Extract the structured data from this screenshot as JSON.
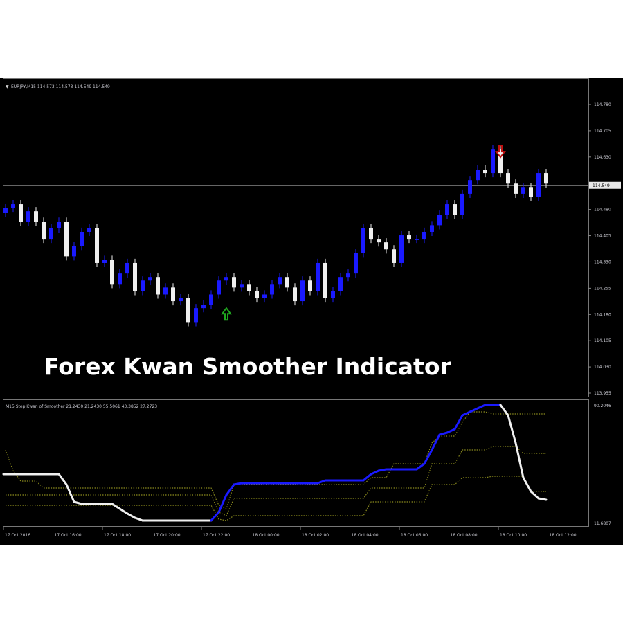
{
  "chart_data": [
    {
      "type": "candlestick",
      "symbol_header": "EURJPY,M15  114.573 114.573 114.549 114.549",
      "overlay_title": "Forex Kwan Smoother Indicator",
      "ylim": [
        113.955,
        114.78
      ],
      "y_ticks": [
        "114.780",
        "114.705",
        "114.630",
        "114.480",
        "114.405",
        "114.330",
        "114.255",
        "114.180",
        "114.105",
        "114.030",
        "113.955"
      ],
      "y_tick_values": [
        114.78,
        114.705,
        114.63,
        114.48,
        114.405,
        114.33,
        114.255,
        114.18,
        114.105,
        114.03,
        113.955
      ],
      "current_price": "114.549",
      "current_price_value": 114.549,
      "first_open": 114.47,
      "closes": [
        114.485,
        114.495,
        114.445,
        114.475,
        114.445,
        114.396,
        114.426,
        114.445,
        114.346,
        114.376,
        114.416,
        114.426,
        114.327,
        114.336,
        114.267,
        114.297,
        114.327,
        114.247,
        114.277,
        114.287,
        114.237,
        114.257,
        114.218,
        114.228,
        114.158,
        114.198,
        114.208,
        114.237,
        114.277,
        114.287,
        114.257,
        114.267,
        114.247,
        114.228,
        114.237,
        114.267,
        114.287,
        114.257,
        114.218,
        114.277,
        114.247,
        114.327,
        114.228,
        114.247,
        114.287,
        114.297,
        114.356,
        114.426,
        114.396,
        114.386,
        114.366,
        114.327,
        114.406,
        114.396,
        114.396,
        114.416,
        114.435,
        114.465,
        114.495,
        114.465,
        114.525,
        114.564,
        114.594,
        114.584,
        114.653,
        114.584,
        114.554,
        114.525,
        114.544,
        114.515,
        114.584,
        114.554
      ],
      "signals": [
        {
          "type": "buy",
          "index": 29,
          "color": "#1fa81f"
        },
        {
          "type": "sell",
          "index": 65,
          "color": "#c01010"
        }
      ],
      "colors": {
        "bull": "#1a1aff",
        "bear": "#f0f0f0",
        "background": "#000000"
      }
    },
    {
      "type": "line",
      "header": "M15 Step Kwan of Smoother 21.2430 21.2430 55.5061 43.3852 27.2723",
      "ylim": [
        11.6807,
        90.2046
      ],
      "y_ticks": [
        "90.2046",
        "11.6807"
      ],
      "main": [
        44.01,
        44.01,
        44.01,
        44.01,
        44.01,
        44.01,
        44.01,
        44.01,
        37.1,
        25.54,
        24.15,
        24.15,
        24.15,
        24.15,
        24.15,
        20.92,
        17.69,
        14.91,
        13.07,
        13.07,
        13.07,
        13.07,
        13.07,
        13.07,
        13.07,
        13.07,
        13.07,
        13.07,
        18.61,
        30.16,
        37.1,
        38.01,
        38.01,
        38.01,
        38.01,
        38.01,
        38.01,
        38.01,
        38.01,
        38.01,
        38.01,
        38.01,
        39.86,
        39.86,
        39.86,
        39.86,
        39.86,
        39.86,
        44.01,
        46.32,
        47.25,
        47.25,
        47.25,
        47.25,
        47.25,
        50.94,
        60.18,
        70.34,
        71.73,
        74.04,
        83.27,
        85.58,
        87.89,
        90.2,
        90.2,
        90.2,
        83.27,
        64.8,
        41.7,
        32.47,
        27.85,
        26.92
      ],
      "upper": [
        60.18,
        46.32,
        39.39,
        39.39,
        39.39,
        34.78,
        34.78,
        34.78,
        34.78,
        34.78,
        34.78,
        34.78,
        34.78,
        34.78,
        34.78,
        34.78,
        34.78,
        34.78,
        34.78,
        34.78,
        34.78,
        34.78,
        34.78,
        34.78,
        34.78,
        34.78,
        34.78,
        34.78,
        23.23,
        20.92,
        37.09,
        37.09,
        37.09,
        37.09,
        37.09,
        37.09,
        37.09,
        37.09,
        37.09,
        37.09,
        37.09,
        37.09,
        37.09,
        37.09,
        37.09,
        37.09,
        37.09,
        37.09,
        41.7,
        41.7,
        41.7,
        50.94,
        50.94,
        50.94,
        50.94,
        50.94,
        64.8,
        69.42,
        69.42,
        69.42,
        78.66,
        85.58,
        85.58,
        85.58,
        84.2,
        84.2,
        84.2,
        84.2,
        84.2,
        84.2,
        84.2,
        84.2
      ],
      "middle": [
        30.16,
        30.16,
        30.16,
        30.16,
        30.16,
        30.16,
        30.16,
        30.16,
        30.16,
        30.16,
        30.16,
        30.16,
        30.16,
        30.16,
        30.16,
        30.16,
        30.16,
        30.16,
        30.16,
        30.16,
        30.16,
        30.16,
        30.16,
        30.16,
        30.16,
        30.16,
        30.16,
        30.16,
        18.61,
        16.3,
        27.85,
        27.85,
        27.85,
        27.85,
        27.85,
        27.85,
        27.85,
        27.85,
        27.85,
        27.85,
        27.85,
        27.85,
        27.85,
        27.85,
        27.85,
        27.85,
        27.85,
        27.85,
        34.78,
        34.78,
        34.78,
        34.78,
        34.78,
        34.78,
        34.78,
        34.78,
        50.94,
        50.94,
        50.94,
        50.94,
        60.18,
        60.18,
        60.18,
        60.18,
        62.49,
        62.49,
        62.49,
        62.49,
        57.87,
        57.87,
        57.87,
        57.87
      ],
      "lower": [
        23.23,
        23.23,
        23.23,
        23.23,
        23.23,
        23.23,
        23.23,
        23.23,
        23.23,
        23.23,
        23.23,
        23.23,
        23.23,
        23.23,
        23.23,
        23.23,
        23.23,
        23.23,
        23.23,
        23.23,
        23.23,
        23.23,
        23.23,
        23.23,
        23.23,
        23.23,
        23.23,
        23.23,
        13.99,
        13.07,
        16.3,
        16.3,
        16.3,
        16.3,
        16.3,
        16.3,
        16.3,
        16.3,
        16.3,
        16.3,
        16.3,
        16.3,
        16.3,
        16.3,
        16.3,
        16.3,
        16.3,
        16.3,
        25.54,
        25.54,
        25.54,
        25.54,
        25.54,
        25.54,
        25.54,
        25.54,
        37.09,
        37.09,
        37.09,
        37.09,
        41.7,
        41.7,
        41.7,
        41.7,
        42.63,
        42.63,
        42.63,
        42.63,
        42.63,
        32.47,
        32.47,
        32.47
      ],
      "colors": {
        "rising": "#1a1aff",
        "falling": "#f0f0f0",
        "levels": "#8c8c1e"
      }
    }
  ],
  "x_ticks": [
    "17 Oct 2016",
    "17 Oct 16:00",
    "17 Oct 18:00",
    "17 Oct 20:00",
    "17 Oct 22:00",
    "18 Oct 00:00",
    "18 Oct 02:00",
    "18 Oct 04:00",
    "18 Oct 06:00",
    "18 Oct 08:00",
    "18 Oct 10:00",
    "18 Oct 12:00"
  ]
}
